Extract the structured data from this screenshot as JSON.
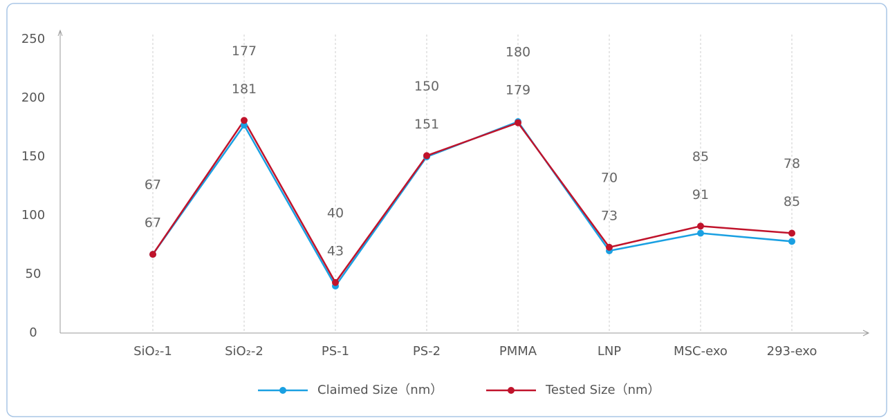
{
  "chart_data": {
    "type": "line",
    "categories": [
      "SiO₂-1",
      "SiO₂-2",
      "PS-1",
      "PS-2",
      "PMMA",
      "LNP",
      "MSC-exo",
      "293-exo"
    ],
    "series": [
      {
        "name": "Claimed Size（nm）",
        "color": "#1aa0e2",
        "values": [
          67,
          177,
          40,
          150,
          180,
          70,
          85,
          78
        ]
      },
      {
        "name": "Tested Size（nm）",
        "color": "#c0132b",
        "values": [
          67,
          181,
          43,
          151,
          179,
          73,
          91,
          85
        ]
      }
    ],
    "ylim": [
      0,
      250
    ],
    "yticks": [
      0,
      50,
      100,
      150,
      200,
      250
    ],
    "grid": true
  }
}
